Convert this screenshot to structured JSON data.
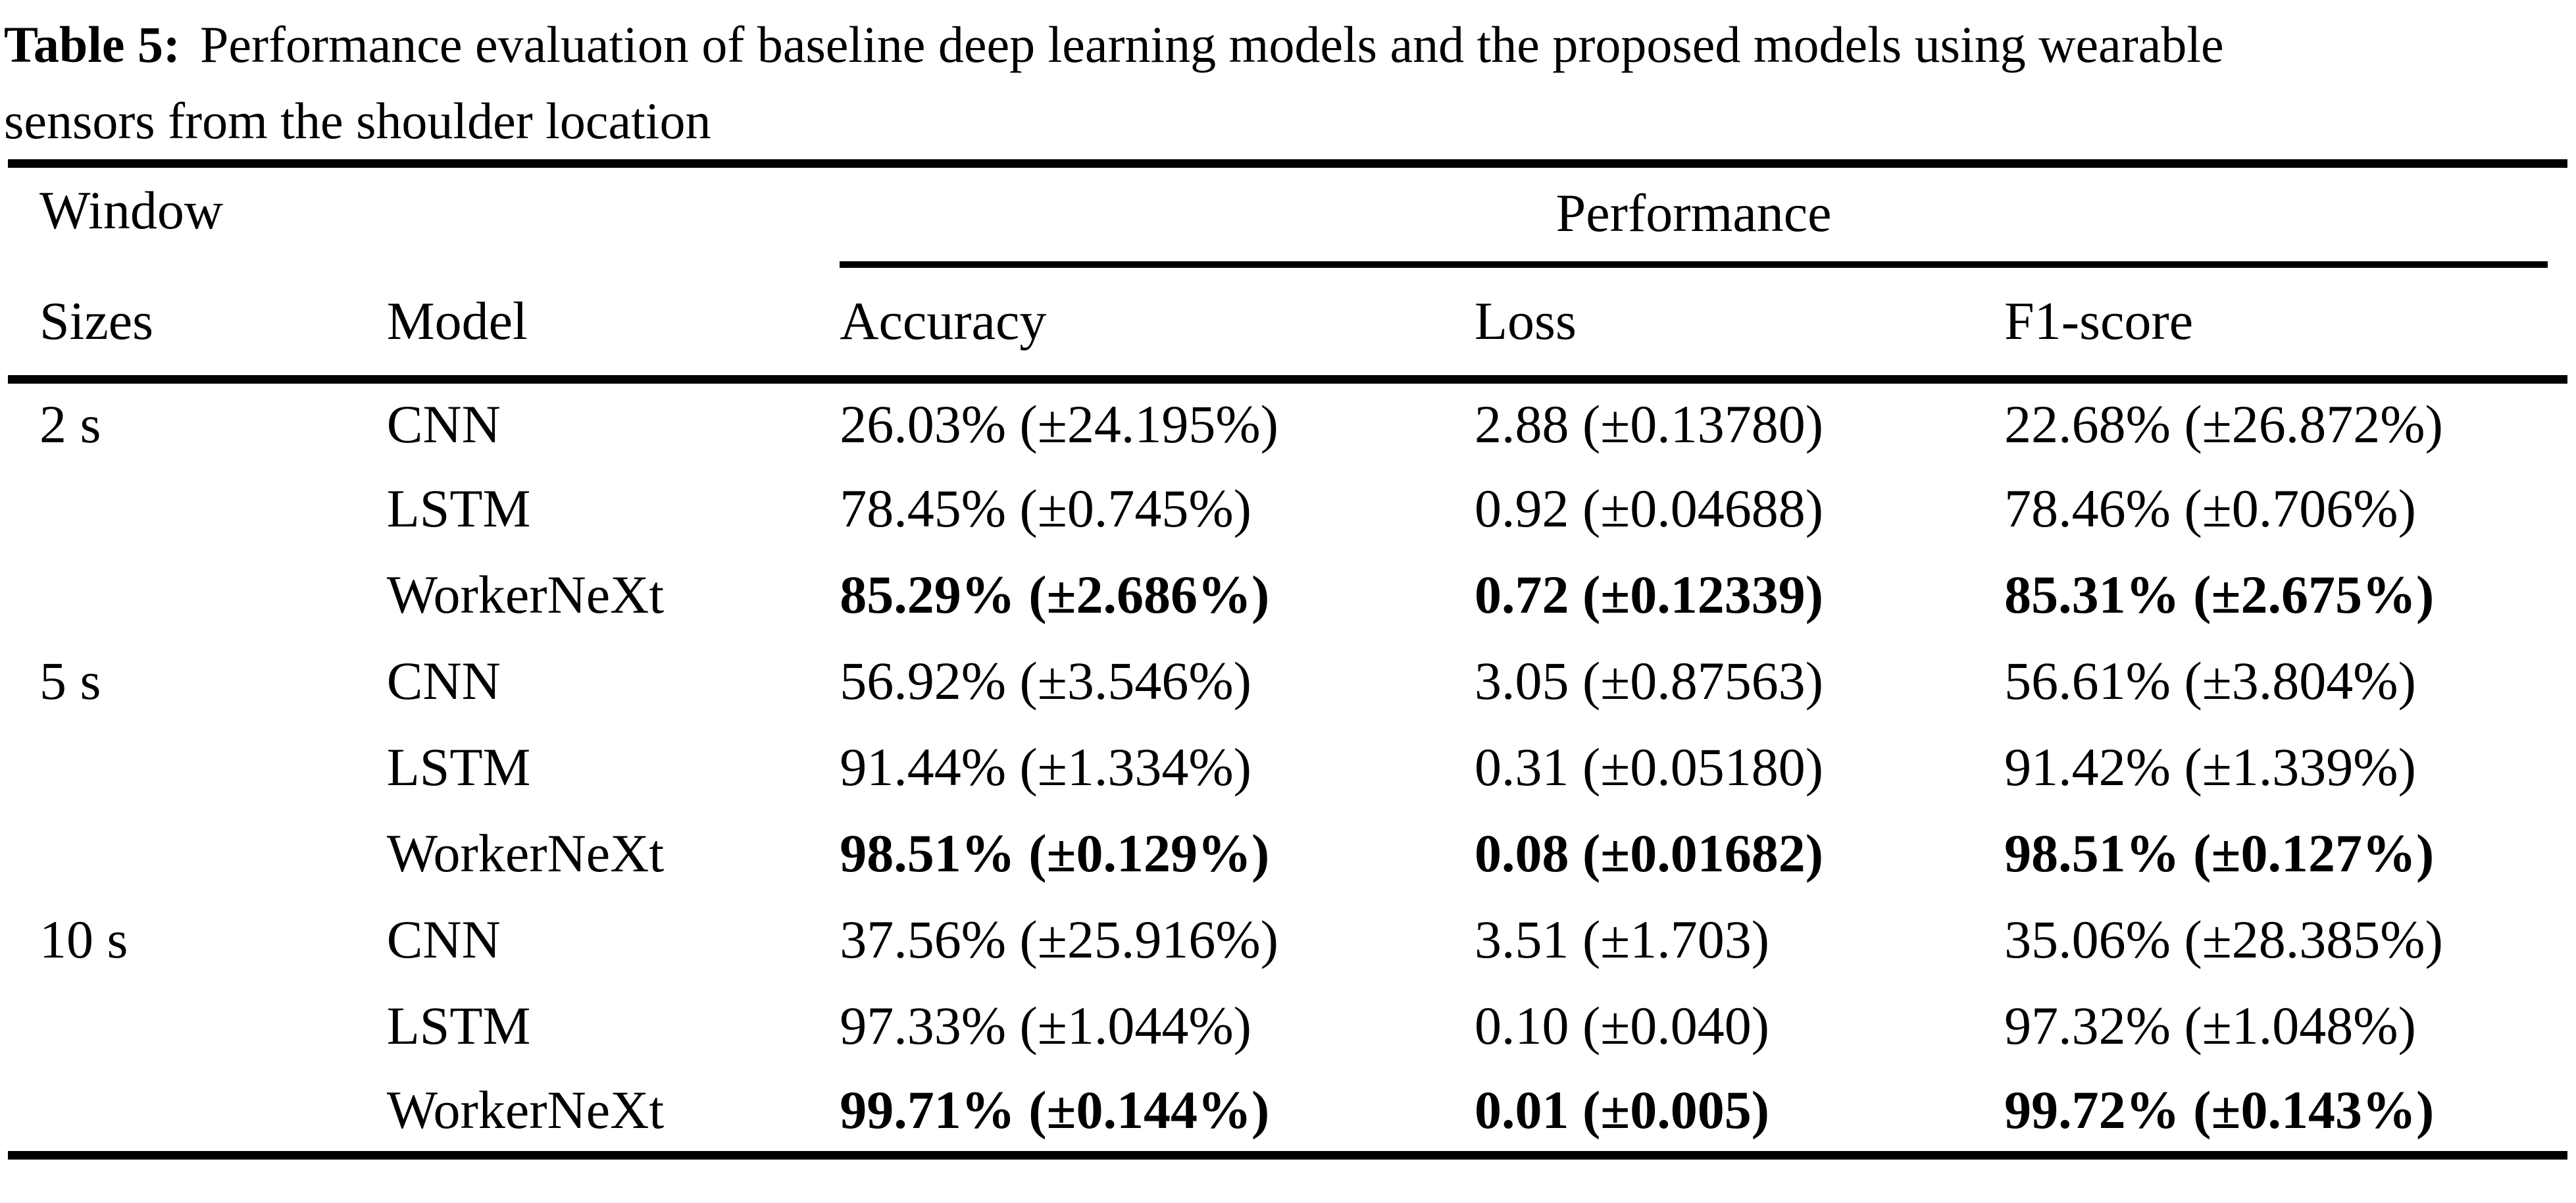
{
  "caption": {
    "label": "Table 5:",
    "line1": "Performance evaluation of baseline deep learning models and the proposed models using wearable",
    "line2": "sensors from the shoulder location"
  },
  "table": {
    "headers": {
      "window_top": "Window",
      "window_bottom": "Sizes",
      "model": "Model",
      "performance": "Performance",
      "accuracy": "Accuracy",
      "loss": "Loss",
      "f1_score": "F1-score"
    },
    "rows": [
      {
        "window": "2 s",
        "model": "CNN",
        "accuracy": "26.03% (±24.195%)",
        "loss": "2.88 (±0.13780)",
        "f1_score": "22.68% (±26.872%)",
        "emphasis": false
      },
      {
        "window": "",
        "model": "LSTM",
        "accuracy": "78.45% (±0.745%)",
        "loss": "0.92 (±0.04688)",
        "f1_score": "78.46% (±0.706%)",
        "emphasis": false
      },
      {
        "window": "",
        "model": "WorkerNeXt",
        "accuracy": "85.29% (±2.686%)",
        "loss": "0.72 (±0.12339)",
        "f1_score": "85.31% (±2.675%)",
        "emphasis": true
      },
      {
        "window": "5 s",
        "model": "CNN",
        "accuracy": "56.92% (±3.546%)",
        "loss": "3.05 (±0.87563)",
        "f1_score": "56.61% (±3.804%)",
        "emphasis": false
      },
      {
        "window": "",
        "model": "LSTM",
        "accuracy": "91.44% (±1.334%)",
        "loss": "0.31 (±0.05180)",
        "f1_score": "91.42% (±1.339%)",
        "emphasis": false
      },
      {
        "window": "",
        "model": "WorkerNeXt",
        "accuracy": "98.51% (±0.129%)",
        "loss": "0.08 (±0.01682)",
        "f1_score": "98.51% (±0.127%)",
        "emphasis": true
      },
      {
        "window": "10 s",
        "model": "CNN",
        "accuracy": "37.56% (±25.916%)",
        "loss": "3.51 (±1.703)",
        "f1_score": "35.06% (±28.385%)",
        "emphasis": false
      },
      {
        "window": "",
        "model": "LSTM",
        "accuracy": "97.33% (±1.044%)",
        "loss": "0.10 (±0.040)",
        "f1_score": "97.32% (±1.048%)",
        "emphasis": false
      },
      {
        "window": "",
        "model": "WorkerNeXt",
        "accuracy": "99.71% (±0.144%)",
        "loss": "0.01 (±0.005)",
        "f1_score": "99.72% (±0.143%)",
        "emphasis": true
      }
    ]
  }
}
